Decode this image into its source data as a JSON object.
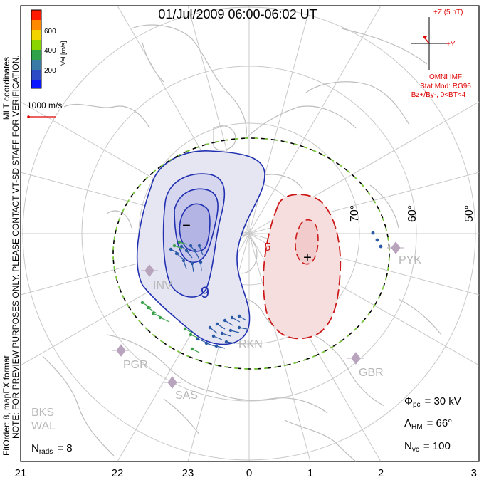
{
  "title": "01/Jul/2009 06:00-06:02 UT",
  "side_note": "NOTE: FOR PREVIEW PURPOSES ONLY. PLEASE CONTACT VT-SD STAFF FOR VERIFICATION.",
  "fit_order": "FitOrder: 8,  mapEX format",
  "coords": "MLT coordinates",
  "colorbar": {
    "label": "Vel [m/s]",
    "ticks": [
      "600",
      "400",
      "200"
    ],
    "colors": [
      "#ff1a00",
      "#ff8a00",
      "#f2d400",
      "#8ad400",
      "#2fa24a",
      "#3a7aa6",
      "#2b4bc6",
      "#0a16ff"
    ]
  },
  "ref_vector": "1000 m/s",
  "imf": {
    "z_label": "+Z (5 nT)",
    "y_label": "+Y",
    "source": "OMNI IMF",
    "stat_mod": "Stat Mod: RG96",
    "condition": "Bz+/By-, 0<BT<4"
  },
  "latitudes": [
    "70°",
    "60°",
    "50°"
  ],
  "mlt_labels": [
    "21",
    "22",
    "23",
    "0",
    "1",
    "2",
    "3"
  ],
  "radars": [
    "INV",
    "RKN",
    "PYK",
    "PGR",
    "SAS",
    "GBR",
    "BKS",
    "WAL"
  ],
  "stats": {
    "nrads_sym": "N",
    "nrads_sub": "rads",
    "nrads_val": "= 8",
    "phi_sym": "Φ",
    "phi_sub": "pc",
    "phi_val": "= 30 kV",
    "lam_sym": "Λ",
    "lam_sub": "HM",
    "lam_val": "= 66°",
    "nvc_sym": "N",
    "nvc_sub": "vc",
    "nvc_val": "= 100"
  },
  "potential_markers": {
    "min": "−",
    "max": "+"
  },
  "contour_labels": {
    "neg": "9",
    "pos": "5"
  },
  "map_colors": {
    "negative": "#2030b0",
    "positive": "#cc1a1a",
    "land": "#bdbdbd",
    "grid": "#c8c8c8"
  }
}
